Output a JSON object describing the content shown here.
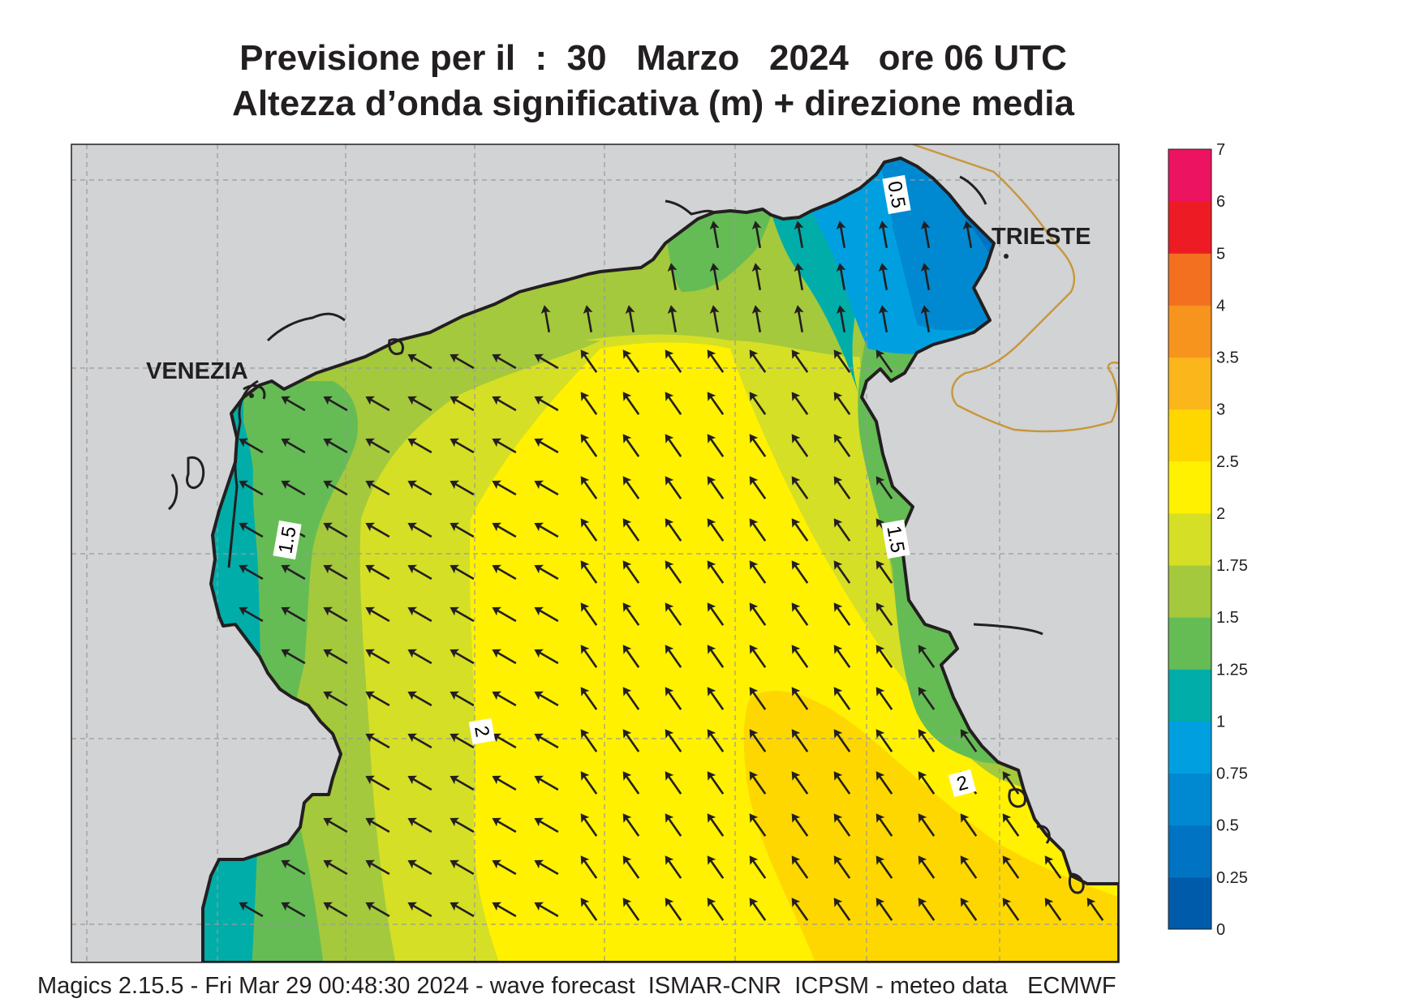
{
  "title": {
    "line1": "Previsione per il  :  30   Marzo   2024   ore 06 UTC",
    "line2": "Altezza d’onda significativa (m) + direzione media"
  },
  "map": {
    "cities": [
      {
        "name": "VENEZIA"
      },
      {
        "name": "TRIESTE"
      }
    ],
    "contour_labels": [
      {
        "text": "0.5"
      },
      {
        "text": "1.5"
      },
      {
        "text": "1.5"
      },
      {
        "text": "2"
      },
      {
        "text": "2"
      }
    ],
    "mean_wave_direction": "toward north-west",
    "colors": {
      "land": "#d1d3d4",
      "coast": "#231f20",
      "border": "#c8963c",
      "graticule": "#9a9a9a"
    }
  },
  "legend": {
    "unit": "m",
    "levels": [
      "0",
      "0.25",
      "0.5",
      "0.75",
      "1",
      "1.25",
      "1.5",
      "1.75",
      "2",
      "2.5",
      "3",
      "3.5",
      "4",
      "5",
      "6",
      "7"
    ],
    "colors": [
      "#005bab",
      "#0073c2",
      "#0089d0",
      "#00a0e0",
      "#00ada9",
      "#65bc55",
      "#a4c93c",
      "#d5df26",
      "#fff100",
      "#fed700",
      "#fbb61b",
      "#f7941d",
      "#f37021",
      "#ed1c24",
      "#ec1460"
    ]
  },
  "footer": "Magics 2.15.5 - Fri Mar 29 00:48:30 2024 - wave forecast  ISMAR-CNR  ICPSM - meteo data   ECMWF"
}
